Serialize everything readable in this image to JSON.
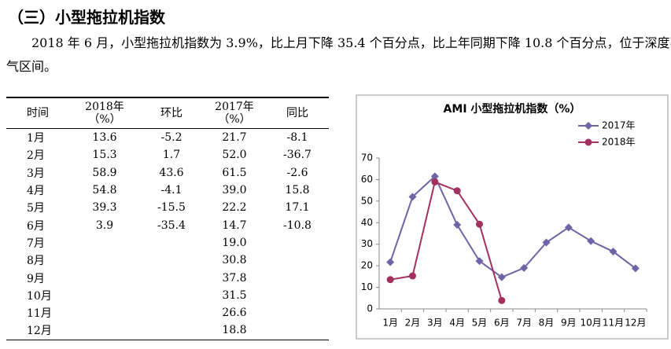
{
  "heading": "（三）小型拖拉机指数",
  "paragraph": "2018 年 6 月，小型拖拉机指数为 3.9%，比上月下降 35.4 个百分点，比上年同期下降 10.8 个百分点，位于深度不景气区间。",
  "table": {
    "headers": [
      [
        "时间"
      ],
      [
        "2018年",
        "（%）"
      ],
      [
        "环比"
      ],
      [
        "2017年",
        "（%）"
      ],
      [
        "同比"
      ]
    ],
    "rows": [
      {
        "month": "1月",
        "y2018": "13.6",
        "mom": "-5.2",
        "y2017": "21.7",
        "yoy": "-8.1"
      },
      {
        "month": "2月",
        "y2018": "15.3",
        "mom": "1.7",
        "y2017": "52.0",
        "yoy": "-36.7"
      },
      {
        "month": "3月",
        "y2018": "58.9",
        "mom": "43.6",
        "y2017": "61.5",
        "yoy": "-2.6"
      },
      {
        "month": "4月",
        "y2018": "54.8",
        "mom": "-4.1",
        "y2017": "39.0",
        "yoy": "15.8"
      },
      {
        "month": "5月",
        "y2018": "39.3",
        "mom": "-15.5",
        "y2017": "22.2",
        "yoy": "17.1"
      },
      {
        "month": "6月",
        "y2018": "3.9",
        "mom": "-35.4",
        "y2017": "14.7",
        "yoy": "-10.8"
      },
      {
        "month": "7月",
        "y2017": "19.0"
      },
      {
        "month": "8月",
        "y2017": "30.8"
      },
      {
        "month": "9月",
        "y2017": "37.8"
      },
      {
        "month": "10月",
        "y2017": "31.5"
      },
      {
        "month": "11月",
        "y2017": "26.6"
      },
      {
        "month": "12月",
        "y2017": "18.8"
      }
    ]
  },
  "chart_data": {
    "type": "line",
    "title": "AMI 小型拖拉机指数（%）",
    "categories": [
      "1月",
      "2月",
      "3月",
      "4月",
      "5月",
      "6月",
      "7月",
      "8月",
      "9月",
      "10月",
      "11月",
      "12月"
    ],
    "series": [
      {
        "name": "2017年",
        "color": "#6e64a6",
        "marker": "diamond",
        "values": [
          21.7,
          52.0,
          61.5,
          39.0,
          22.2,
          14.7,
          19.0,
          30.8,
          37.8,
          31.5,
          26.6,
          18.8
        ]
      },
      {
        "name": "2018年",
        "color": "#a3305f",
        "marker": "circle",
        "values": [
          13.6,
          15.3,
          58.9,
          54.8,
          39.3,
          3.9,
          null,
          null,
          null,
          null,
          null,
          null
        ]
      }
    ],
    "ylim": [
      0,
      70
    ],
    "yticks": [
      0,
      10,
      20,
      30,
      40,
      50,
      60,
      70
    ],
    "legend": "top-right"
  }
}
